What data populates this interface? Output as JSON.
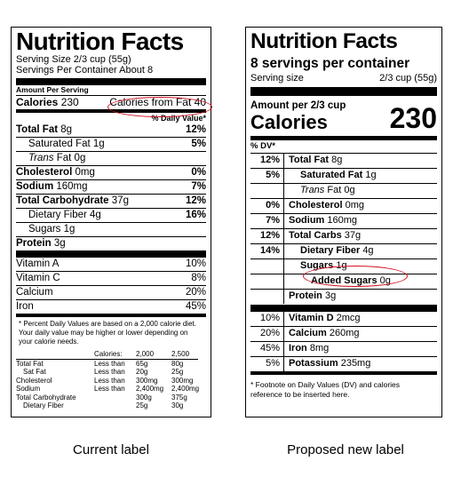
{
  "current": {
    "title": "Nutrition Facts",
    "serving_size": "Serving Size 2/3 cup (55g)",
    "servings_per_container": "Servings Per Container About 8",
    "amount_per_serving": "Amount Per Serving",
    "calories_label": "Calories",
    "calories_value": "230",
    "calories_from_fat": "Calories from Fat 40",
    "daily_value_header": "% Daily Value*",
    "nutrients": [
      {
        "name": "Total Fat",
        "amount": "8g",
        "dv": "12%",
        "bold": true,
        "indent": false
      },
      {
        "name": "Saturated Fat",
        "amount": "1g",
        "dv": "5%",
        "bold": false,
        "indent": true
      },
      {
        "name": "Trans",
        "amount": "Fat 0g",
        "dv": "",
        "bold": false,
        "indent": true
      },
      {
        "name": "Cholesterol",
        "amount": "0mg",
        "dv": "0%",
        "bold": true,
        "indent": false
      },
      {
        "name": "Sodium",
        "amount": "160mg",
        "dv": "7%",
        "bold": true,
        "indent": false
      },
      {
        "name": "Total Carbohydrate",
        "amount": "37g",
        "dv": "12%",
        "bold": true,
        "indent": false
      },
      {
        "name": "Dietary Fiber",
        "amount": "4g",
        "dv": "16%",
        "bold": false,
        "indent": true
      },
      {
        "name": "Sugars",
        "amount": "1g",
        "dv": "",
        "bold": false,
        "indent": true
      },
      {
        "name": "Protein",
        "amount": "3g",
        "dv": "",
        "bold": true,
        "indent": false
      }
    ],
    "vitamins": [
      {
        "name": "Vitamin A",
        "dv": "10%"
      },
      {
        "name": "Vitamin C",
        "dv": "8%"
      },
      {
        "name": "Calcium",
        "dv": "20%"
      },
      {
        "name": "Iron",
        "dv": "45%"
      }
    ],
    "footnote": "* Percent Daily Values are based on a 2,000 calorie diet. Your daily value may be higher or lower depending on your calorie needs.",
    "footnote_table": {
      "header": [
        "",
        "Calories:",
        "2,000",
        "2,500"
      ],
      "rows": [
        [
          "Total Fat",
          "Less than",
          "65g",
          "80g"
        ],
        [
          "Sat Fat",
          "Less than",
          "20g",
          "25g"
        ],
        [
          "Cholesterol",
          "Less than",
          "300mg",
          "300mg"
        ],
        [
          "Sodium",
          "Less than",
          "2,400mg",
          "2,400mg"
        ],
        [
          "Total Carbohydrate",
          "",
          "300g",
          "375g"
        ],
        [
          "Dietary Fiber",
          "",
          "25g",
          "30g"
        ]
      ]
    }
  },
  "proposed": {
    "title": "Nutrition Facts",
    "servings": "8 servings per container",
    "serving_size_label": "Serving size",
    "serving_size_value": "2/3 cup (55g)",
    "amount_per": "Amount per 2/3 cup",
    "calories_label": "Calories",
    "calories_value": "230",
    "dv_header": "% DV*",
    "nutrients": [
      {
        "dv": "12%",
        "name": "Total Fat",
        "amount": "8g",
        "bold": true,
        "indent": 0
      },
      {
        "dv": "5%",
        "name": "Saturated Fat",
        "amount": "1g",
        "bold": true,
        "indent": 1
      },
      {
        "dv": "",
        "name": "Trans",
        "amount": "Fat 0g",
        "bold": false,
        "indent": 1
      },
      {
        "dv": "0%",
        "name": "Cholesterol",
        "amount": "0mg",
        "bold": true,
        "indent": 0
      },
      {
        "dv": "7%",
        "name": "Sodium",
        "amount": "160mg",
        "bold": true,
        "indent": 0
      },
      {
        "dv": "12%",
        "name": "Total Carbs",
        "amount": "37g",
        "bold": true,
        "indent": 0
      },
      {
        "dv": "14%",
        "name": "Dietary Fiber",
        "amount": "4g",
        "bold": true,
        "indent": 1
      },
      {
        "dv": "",
        "name": "Sugars",
        "amount": "1g",
        "bold": true,
        "indent": 1
      },
      {
        "dv": "",
        "name": "Added Sugars",
        "amount": "0g",
        "bold": true,
        "indent": 2
      },
      {
        "dv": "",
        "name": "Protein",
        "amount": "3g",
        "bold": true,
        "indent": 0
      }
    ],
    "vitamins": [
      {
        "dv": "10%",
        "name": "Vitamin D",
        "amount": "2mcg"
      },
      {
        "dv": "20%",
        "name": "Calcium",
        "amount": "260mg"
      },
      {
        "dv": "45%",
        "name": "Iron",
        "amount": "8mg"
      },
      {
        "dv": "5%",
        "name": "Potassium",
        "amount": "235mg"
      }
    ],
    "footnote": "* Footnote on Daily Values (DV) and calories reference to be inserted here."
  },
  "captions": {
    "current": "Current label",
    "proposed": "Proposed new label"
  },
  "highlight_color": "#d01020"
}
